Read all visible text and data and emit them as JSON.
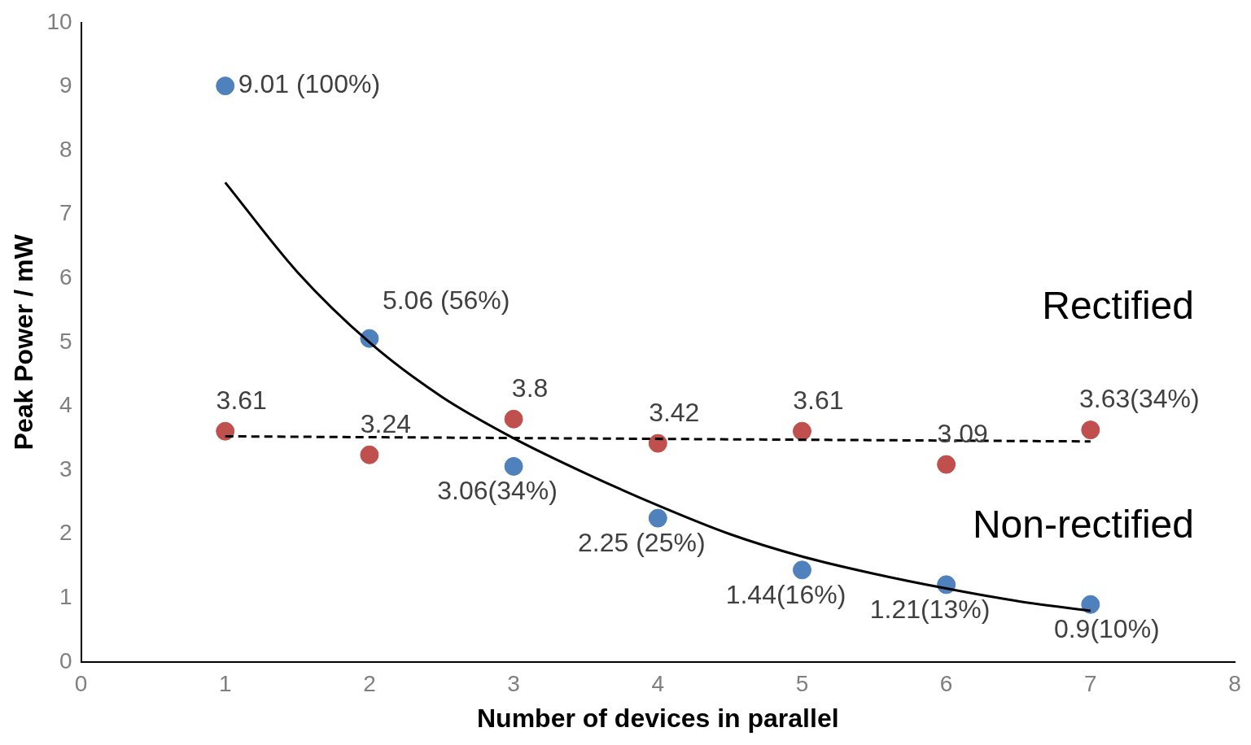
{
  "chart_data": {
    "type": "scatter",
    "xlabel": "Number of devices in parallel",
    "ylabel": "Peak Power / mW",
    "xlim": [
      0,
      8
    ],
    "xticks": [
      0,
      1,
      2,
      3,
      4,
      5,
      6,
      7,
      8
    ],
    "ylim": [
      0,
      10
    ],
    "yticks": [
      0,
      1,
      2,
      3,
      4,
      5,
      6,
      7,
      8,
      9,
      10
    ],
    "grid": false,
    "legend": false,
    "marker": "circle",
    "series": [
      {
        "name": "Rectified",
        "color": "#c0504d",
        "x": [
          1,
          2,
          3,
          4,
          5,
          6,
          7
        ],
        "values": [
          3.61,
          3.24,
          3.8,
          3.42,
          3.61,
          3.09,
          3.63
        ],
        "value_labels": [
          "3.61",
          "3.24",
          "3.8",
          "3.42",
          "3.61",
          "3.09",
          "3.63(34%)"
        ]
      },
      {
        "name": "Non-rectified",
        "color": "#4f81bd",
        "x": [
          1,
          2,
          3,
          4,
          5,
          6,
          7
        ],
        "values": [
          9.01,
          5.06,
          3.06,
          2.25,
          1.44,
          1.21,
          0.9
        ],
        "value_labels": [
          "9.01 (100%)",
          "5.06 (56%)",
          "3.06(34%)",
          "2.25 (25%)",
          "1.44(16%)",
          "1.21(13%)",
          "0.9(10%)"
        ]
      },
      {
        "type": "line",
        "color": "#000000",
        "line_style": "dashed",
        "marker": "none",
        "x": [
          1,
          7
        ],
        "values": [
          3.53,
          3.45
        ]
      },
      {
        "type": "line",
        "color": "#000000",
        "line_style": "solid",
        "marker": "none",
        "x": [
          1,
          1.5,
          2,
          2.5,
          3,
          3.5,
          4,
          4.5,
          5,
          5.5,
          6,
          6.5,
          7
        ],
        "values": [
          7.5,
          6.1,
          5.0,
          4.15,
          3.5,
          2.95,
          2.45,
          2.0,
          1.65,
          1.38,
          1.15,
          0.95,
          0.8
        ]
      }
    ]
  }
}
